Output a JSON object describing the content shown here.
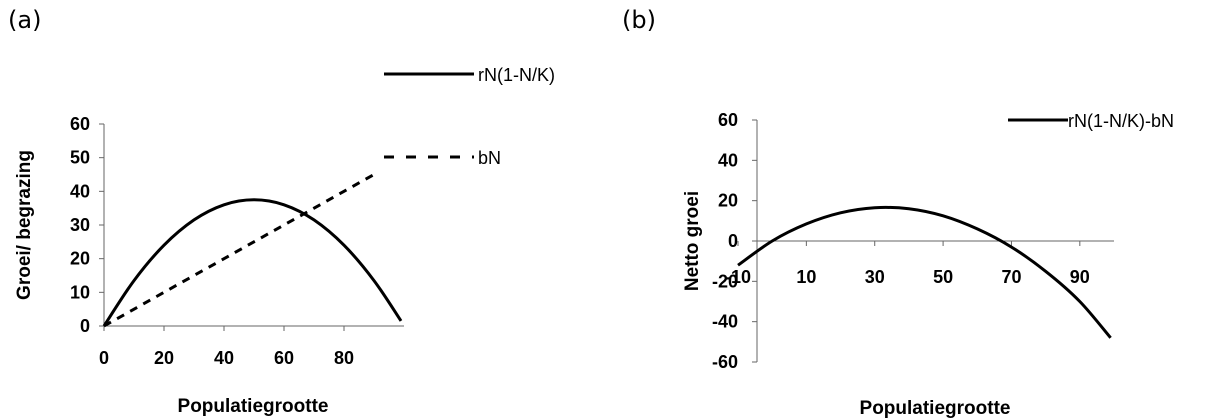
{
  "labels": {
    "a": "(a)",
    "b": "(b)"
  },
  "chart_data": [
    {
      "type": "line",
      "xlabel": "Populatiegrootte",
      "ylabel": "Groei/ begrazing",
      "xlim": [
        0,
        100
      ],
      "ylim": [
        0,
        60
      ],
      "xticks": [
        "0",
        "20",
        "40",
        "60",
        "80"
      ],
      "yticks": [
        "0",
        "10",
        "20",
        "30",
        "40",
        "50",
        "60"
      ],
      "x": [
        0,
        10,
        20,
        30,
        40,
        50,
        60,
        70,
        80,
        90,
        99
      ],
      "series": [
        {
          "name": "rN(1-N/K)",
          "style": "solid",
          "values": [
            0,
            13.5,
            24,
            31.5,
            36,
            37.5,
            36,
            31.5,
            24,
            13.5,
            1.5
          ]
        },
        {
          "name": "bN",
          "style": "dashed",
          "values": [
            0,
            5,
            10,
            15,
            20,
            25,
            30,
            35,
            40,
            45,
            null
          ]
        }
      ],
      "legend": "top-right"
    },
    {
      "type": "line",
      "xlabel": "Populatiegrootte",
      "ylabel": "Netto groei",
      "xlim": [
        -10,
        100
      ],
      "ylim": [
        -60,
        60
      ],
      "xticks": [
        "-10",
        "10",
        "30",
        "50",
        "70",
        "90"
      ],
      "yticks": [
        "60",
        "40",
        "20",
        "0",
        "-20",
        "-40",
        "-60"
      ],
      "x": [
        -10,
        0,
        10,
        20,
        30,
        40,
        50,
        60,
        70,
        80,
        90,
        99
      ],
      "series": [
        {
          "name": "rN(1-N/K)-bN",
          "style": "solid",
          "values": [
            -12,
            0,
            8.5,
            14,
            16.5,
            16,
            12.5,
            6,
            -3,
            -15,
            -30,
            -48
          ]
        }
      ],
      "legend": "top-right"
    }
  ]
}
